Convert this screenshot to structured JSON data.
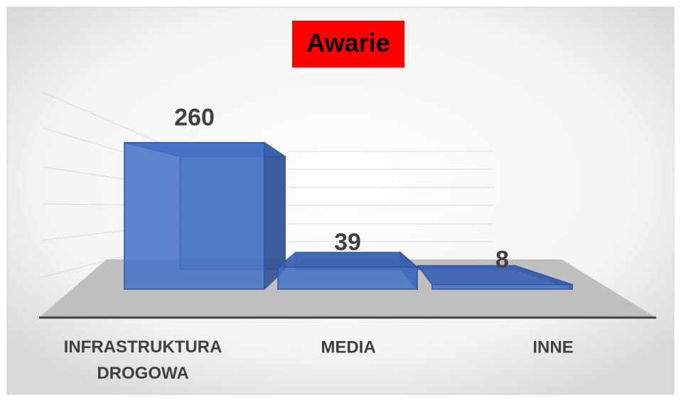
{
  "chart_data": {
    "type": "bar3d",
    "title": "Awarie",
    "categories": [
      "INFRASTRUKTURA DROGOWA",
      "MEDIA",
      "INNE"
    ],
    "values": [
      260,
      39,
      8
    ],
    "color": "#4472c4",
    "ylim": [
      0,
      300
    ]
  }
}
